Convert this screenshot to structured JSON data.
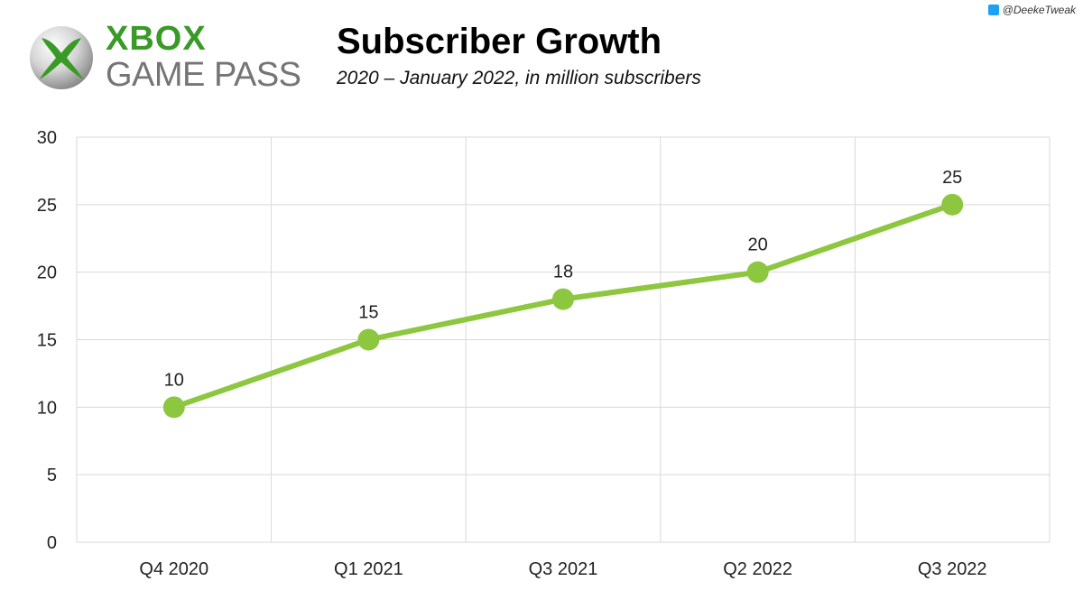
{
  "logo": {
    "line1": "XBOX",
    "line2": "GAME PASS"
  },
  "credit": {
    "icon": "twitter-icon",
    "handle": "@DeekeTweak"
  },
  "chart_data": {
    "type": "line",
    "title": "Subscriber Growth",
    "subtitle": "2020 – January 2022, in million subscribers",
    "categories": [
      "Q4 2020",
      "Q1 2021",
      "Q3 2021",
      "Q2 2022",
      "Q3 2022"
    ],
    "series": [
      {
        "values": [
          10,
          15,
          18,
          20,
          25
        ]
      }
    ],
    "ylim": [
      0,
      30
    ],
    "yticks": [
      0,
      5,
      10,
      15,
      20,
      25,
      30
    ],
    "grid": true,
    "data_labels": true,
    "colors": {
      "line": "#8dc63f",
      "grid": "#d9d9d9",
      "logo_green": "#3a9a28",
      "logo_gray": "#757575"
    }
  }
}
